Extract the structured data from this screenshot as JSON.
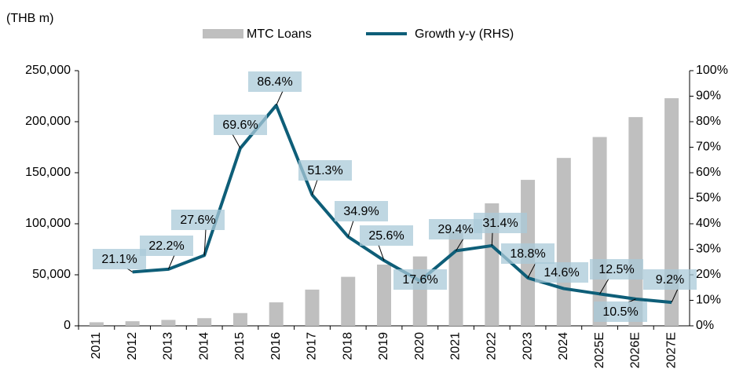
{
  "chart_data": {
    "type": "bar+line",
    "unit_label": "(THB m)",
    "categories": [
      "2011",
      "2012",
      "2013",
      "2014",
      "2015",
      "2016",
      "2017",
      "2018",
      "2019",
      "2020",
      "2021",
      "2022",
      "2023",
      "2024",
      "2025E",
      "2026E",
      "2027E"
    ],
    "series": [
      {
        "name": "MTC  Loans",
        "type": "bar",
        "color": "#bfbfbf",
        "values": [
          3500,
          4500,
          5800,
          7500,
          12500,
          23000,
          35500,
          48000,
          60000,
          68000,
          92000,
          120000,
          143000,
          164500,
          185000,
          204500,
          223000
        ]
      },
      {
        "name": "Growth y-y (RHS)",
        "type": "line",
        "color": "#0e5e78",
        "axis": "y2",
        "values": [
          null,
          21.1,
          22.2,
          27.6,
          69.6,
          86.4,
          51.3,
          34.9,
          25.6,
          17.6,
          29.4,
          31.4,
          18.8,
          14.6,
          12.5,
          10.5,
          9.2
        ],
        "value_labels": [
          null,
          "21.1%",
          "22.2%",
          "27.6%",
          "69.6%",
          "86.4%",
          "51.3%",
          "34.9%",
          "25.6%",
          "17.6%",
          "29.4%",
          "31.4%",
          "18.8%",
          "14.6%",
          "12.5%",
          "10.5%",
          "9.2%"
        ]
      }
    ],
    "ylim": [
      0,
      250000
    ],
    "yticks": [
      0,
      {
        "value": 50000,
        "label": "50,000"
      },
      {
        "value": 100000,
        "label": "100,000"
      },
      {
        "value": 150000,
        "label": "150,000"
      },
      {
        "value": 200000,
        "label": "200,000"
      },
      {
        "value": 250000,
        "label": "250,000"
      }
    ],
    "y2lim": [
      0,
      100
    ],
    "y2ticks": [
      {
        "value": 0,
        "label": "0%"
      },
      {
        "value": 10,
        "label": "10%"
      },
      {
        "value": 20,
        "label": "20%"
      },
      {
        "value": 30,
        "label": "30%"
      },
      {
        "value": 40,
        "label": "40%"
      },
      {
        "value": 50,
        "label": "50%"
      },
      {
        "value": 60,
        "label": "60%"
      },
      {
        "value": 70,
        "label": "70%"
      },
      {
        "value": 80,
        "label": "80%"
      },
      {
        "value": 90,
        "label": "90%"
      },
      {
        "value": 100,
        "label": "100%"
      }
    ],
    "legend": "top"
  }
}
